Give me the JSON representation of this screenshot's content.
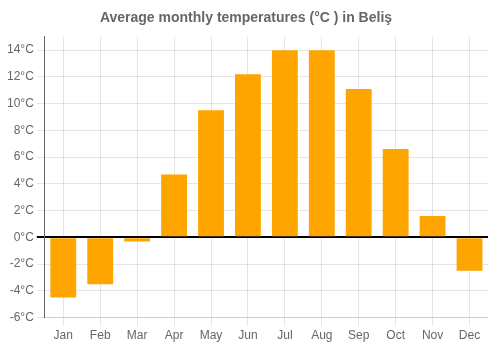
{
  "chart_data": {
    "type": "bar",
    "title": "Average monthly temperatures (°C ) in Beliş",
    "categories": [
      "Jan",
      "Feb",
      "Mar",
      "Apr",
      "May",
      "Jun",
      "Jul",
      "Aug",
      "Sep",
      "Oct",
      "Nov",
      "Dec"
    ],
    "values": [
      -4.5,
      -3.5,
      -0.3,
      4.7,
      9.5,
      12.2,
      14.0,
      14.0,
      11.1,
      6.6,
      1.6,
      -2.5
    ],
    "color": "#FFA500",
    "ylim": [
      -6,
      15
    ],
    "yticks": [
      {
        "value": -6,
        "label": "-6°C"
      },
      {
        "value": -4,
        "label": "-4°C"
      },
      {
        "value": -2,
        "label": "-2°C"
      },
      {
        "value": 0,
        "label": "0°C"
      },
      {
        "value": 2,
        "label": "2°C"
      },
      {
        "value": 4,
        "label": "4°C"
      },
      {
        "value": 6,
        "label": "6°C"
      },
      {
        "value": 8,
        "label": "8°C"
      },
      {
        "value": 10,
        "label": "10°C"
      },
      {
        "value": 12,
        "label": "12°C"
      },
      {
        "value": 14,
        "label": "14°C"
      }
    ],
    "grid": true
  }
}
